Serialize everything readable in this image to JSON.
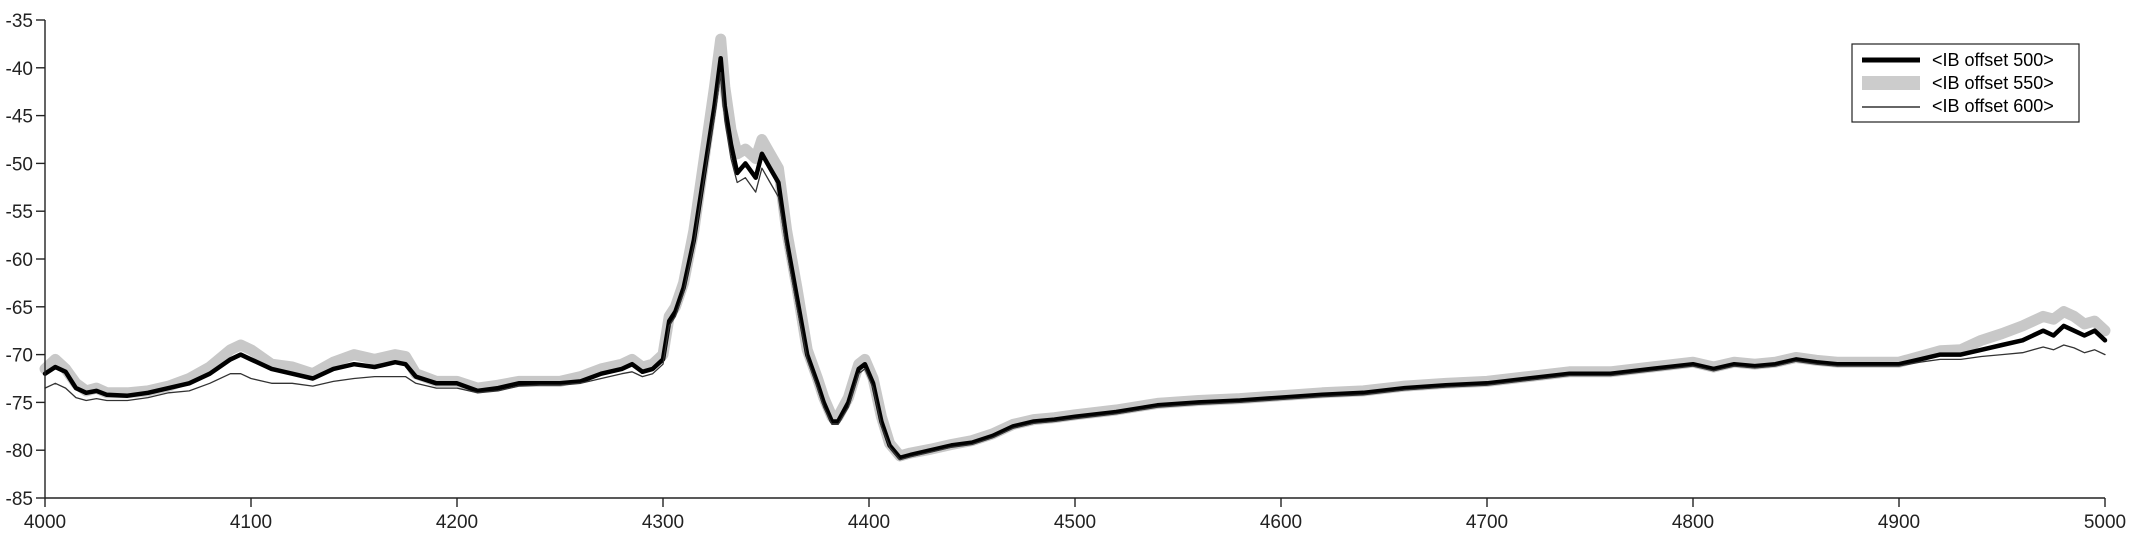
{
  "chart_data": {
    "type": "line",
    "title": "",
    "xlabel": "",
    "ylabel": "",
    "xlim": [
      4000,
      5000
    ],
    "ylim": [
      -85,
      -35
    ],
    "xticks": [
      4000,
      4100,
      4200,
      4300,
      4400,
      4500,
      4600,
      4700,
      4800,
      4900,
      5000
    ],
    "yticks": [
      -35,
      -40,
      -45,
      -50,
      -55,
      -60,
      -65,
      -70,
      -75,
      -80,
      -85
    ],
    "grid": false,
    "legend_position": "top-right",
    "legend": [
      {
        "label": "<IB offset 500>",
        "style": "thick-black-line",
        "color": "#000000"
      },
      {
        "label": "<IB offset 550>",
        "style": "gray-band",
        "color": "#cccccc"
      },
      {
        "label": "<IB offset 600>",
        "style": "thin-black-line",
        "color": "#333333"
      }
    ],
    "series": [
      {
        "name": "<IB offset 500>",
        "x": [
          4000,
          4005,
          4010,
          4015,
          4020,
          4025,
          4030,
          4040,
          4050,
          4060,
          4070,
          4080,
          4090,
          4095,
          4100,
          4110,
          4120,
          4130,
          4140,
          4150,
          4160,
          4170,
          4175,
          4180,
          4190,
          4200,
          4210,
          4220,
          4230,
          4240,
          4250,
          4260,
          4270,
          4280,
          4285,
          4290,
          4295,
          4300,
          4303,
          4306,
          4310,
          4315,
          4320,
          4325,
          4328,
          4330,
          4333,
          4336,
          4340,
          4345,
          4348,
          4352,
          4356,
          4360,
          4365,
          4370,
          4375,
          4378,
          4382,
          4385,
          4390,
          4395,
          4398,
          4402,
          4406,
          4410,
          4415,
          4420,
          4430,
          4440,
          4450,
          4460,
          4470,
          4480,
          4490,
          4500,
          4520,
          4540,
          4560,
          4580,
          4600,
          4620,
          4640,
          4660,
          4680,
          4700,
          4720,
          4740,
          4760,
          4780,
          4800,
          4810,
          4820,
          4830,
          4840,
          4850,
          4860,
          4870,
          4880,
          4890,
          4900,
          4910,
          4920,
          4930,
          4940,
          4950,
          4960,
          4970,
          4975,
          4980,
          4985,
          4990,
          4995,
          5000
        ],
        "y": [
          -72.0,
          -71.3,
          -71.8,
          -73.5,
          -74.0,
          -73.8,
          -74.2,
          -74.3,
          -74.0,
          -73.5,
          -73.0,
          -72.0,
          -70.5,
          -70.0,
          -70.5,
          -71.5,
          -72.0,
          -72.5,
          -71.5,
          -71.0,
          -71.3,
          -70.8,
          -71.0,
          -72.3,
          -73.0,
          -73.0,
          -73.8,
          -73.5,
          -73.0,
          -73.0,
          -73.0,
          -72.8,
          -72.0,
          -71.5,
          -71.0,
          -71.8,
          -71.5,
          -70.5,
          -66.5,
          -65.5,
          -63.0,
          -58.0,
          -51.0,
          -44.0,
          -39.0,
          -44.0,
          -48.0,
          -51.0,
          -50.0,
          -51.5,
          -49.0,
          -50.5,
          -52.0,
          -58.0,
          -64.0,
          -70.0,
          -73.0,
          -75.0,
          -77.0,
          -77.0,
          -75.0,
          -71.5,
          -71.0,
          -73.0,
          -77.0,
          -79.5,
          -80.8,
          -80.5,
          -80.0,
          -79.5,
          -79.2,
          -78.5,
          -77.5,
          -77.0,
          -76.8,
          -76.5,
          -76.0,
          -75.3,
          -75.0,
          -74.8,
          -74.5,
          -74.2,
          -74.0,
          -73.5,
          -73.2,
          -73.0,
          -72.5,
          -72.0,
          -72.0,
          -71.5,
          -71.0,
          -71.5,
          -71.0,
          -71.2,
          -71.0,
          -70.5,
          -70.8,
          -71.0,
          -71.0,
          -71.0,
          -71.0,
          -70.5,
          -70.0,
          -70.0,
          -69.5,
          -69.0,
          -68.5,
          -67.5,
          -68.0,
          -67.0,
          -67.5,
          -68.0,
          -67.5,
          -68.5
        ]
      },
      {
        "name": "<IB offset 550>",
        "x": [
          4000,
          4005,
          4010,
          4015,
          4020,
          4025,
          4030,
          4040,
          4050,
          4060,
          4070,
          4080,
          4090,
          4095,
          4100,
          4110,
          4120,
          4130,
          4140,
          4150,
          4160,
          4170,
          4175,
          4180,
          4190,
          4200,
          4210,
          4220,
          4230,
          4240,
          4250,
          4260,
          4270,
          4280,
          4285,
          4290,
          4295,
          4300,
          4303,
          4306,
          4310,
          4315,
          4320,
          4325,
          4328,
          4330,
          4333,
          4336,
          4340,
          4345,
          4348,
          4352,
          4356,
          4360,
          4365,
          4370,
          4375,
          4378,
          4382,
          4385,
          4390,
          4395,
          4398,
          4402,
          4406,
          4410,
          4415,
          4420,
          4430,
          4440,
          4450,
          4460,
          4470,
          4480,
          4490,
          4500,
          4520,
          4540,
          4560,
          4580,
          4600,
          4620,
          4640,
          4660,
          4680,
          4700,
          4720,
          4740,
          4760,
          4780,
          4800,
          4810,
          4820,
          4830,
          4840,
          4850,
          4860,
          4870,
          4880,
          4890,
          4900,
          4910,
          4920,
          4930,
          4940,
          4950,
          4960,
          4970,
          4975,
          4980,
          4985,
          4990,
          4995,
          5000
        ],
        "y": [
          -71.5,
          -70.5,
          -71.5,
          -73.0,
          -73.8,
          -73.5,
          -74.0,
          -74.0,
          -73.8,
          -73.3,
          -72.5,
          -71.3,
          -69.5,
          -69.0,
          -69.5,
          -71.0,
          -71.3,
          -72.0,
          -70.8,
          -70.0,
          -70.5,
          -70.0,
          -70.2,
          -72.0,
          -72.8,
          -72.8,
          -73.5,
          -73.2,
          -72.8,
          -72.8,
          -72.8,
          -72.3,
          -71.5,
          -71.0,
          -70.5,
          -71.3,
          -71.0,
          -70.0,
          -66.0,
          -65.0,
          -62.5,
          -57.0,
          -49.5,
          -42.0,
          -37.0,
          -42.0,
          -46.5,
          -49.0,
          -48.5,
          -49.5,
          -47.5,
          -49.0,
          -50.5,
          -57.0,
          -63.0,
          -69.5,
          -72.5,
          -74.5,
          -76.5,
          -76.5,
          -74.5,
          -71.0,
          -70.5,
          -72.5,
          -76.5,
          -79.3,
          -80.6,
          -80.3,
          -79.9,
          -79.4,
          -79.0,
          -78.3,
          -77.3,
          -76.8,
          -76.6,
          -76.3,
          -75.8,
          -75.1,
          -74.8,
          -74.6,
          -74.3,
          -74.0,
          -73.8,
          -73.3,
          -73.0,
          -72.8,
          -72.3,
          -71.8,
          -71.8,
          -71.3,
          -70.8,
          -71.3,
          -70.8,
          -71.0,
          -70.8,
          -70.3,
          -70.6,
          -70.8,
          -70.8,
          -70.8,
          -70.8,
          -70.2,
          -69.6,
          -69.5,
          -68.5,
          -67.8,
          -67.0,
          -66.0,
          -66.3,
          -65.5,
          -66.0,
          -66.8,
          -66.5,
          -67.5
        ]
      },
      {
        "name": "<IB offset 600>",
        "x": [
          4000,
          4005,
          4010,
          4015,
          4020,
          4025,
          4030,
          4040,
          4050,
          4060,
          4070,
          4080,
          4090,
          4095,
          4100,
          4110,
          4120,
          4130,
          4140,
          4150,
          4160,
          4170,
          4175,
          4180,
          4190,
          4200,
          4210,
          4220,
          4230,
          4240,
          4250,
          4260,
          4270,
          4280,
          4285,
          4290,
          4295,
          4300,
          4303,
          4306,
          4310,
          4315,
          4320,
          4325,
          4328,
          4330,
          4333,
          4336,
          4340,
          4345,
          4348,
          4352,
          4356,
          4360,
          4365,
          4370,
          4375,
          4378,
          4382,
          4385,
          4390,
          4395,
          4398,
          4402,
          4406,
          4410,
          4415,
          4420,
          4430,
          4440,
          4450,
          4460,
          4470,
          4480,
          4490,
          4500,
          4520,
          4540,
          4560,
          4580,
          4600,
          4620,
          4640,
          4660,
          4680,
          4700,
          4720,
          4740,
          4760,
          4780,
          4800,
          4810,
          4820,
          4830,
          4840,
          4850,
          4860,
          4870,
          4880,
          4890,
          4900,
          4910,
          4920,
          4930,
          4940,
          4950,
          4960,
          4970,
          4975,
          4980,
          4985,
          4990,
          4995,
          5000
        ],
        "y": [
          -73.5,
          -73.0,
          -73.5,
          -74.5,
          -74.8,
          -74.6,
          -74.8,
          -74.8,
          -74.5,
          -74.0,
          -73.8,
          -73.0,
          -72.0,
          -72.0,
          -72.5,
          -73.0,
          -73.0,
          -73.3,
          -72.8,
          -72.5,
          -72.3,
          -72.3,
          -72.3,
          -73.0,
          -73.5,
          -73.5,
          -74.0,
          -73.8,
          -73.3,
          -73.2,
          -73.2,
          -73.0,
          -72.5,
          -72.0,
          -71.8,
          -72.3,
          -72.0,
          -71.0,
          -67.0,
          -66.0,
          -63.5,
          -58.5,
          -51.5,
          -45.0,
          -40.5,
          -45.5,
          -49.5,
          -52.0,
          -51.5,
          -53.0,
          -50.5,
          -52.0,
          -53.5,
          -59.0,
          -65.0,
          -70.5,
          -73.5,
          -75.5,
          -77.3,
          -77.3,
          -75.5,
          -72.0,
          -71.5,
          -73.5,
          -77.5,
          -79.7,
          -81.0,
          -80.7,
          -80.2,
          -79.7,
          -79.4,
          -78.7,
          -77.7,
          -77.2,
          -77.0,
          -76.7,
          -76.2,
          -75.5,
          -75.2,
          -75.0,
          -74.7,
          -74.4,
          -74.2,
          -73.7,
          -73.4,
          -73.2,
          -72.7,
          -72.2,
          -72.2,
          -71.7,
          -71.2,
          -71.7,
          -71.2,
          -71.4,
          -71.2,
          -70.7,
          -71.0,
          -71.2,
          -71.2,
          -71.2,
          -71.2,
          -70.8,
          -70.5,
          -70.5,
          -70.2,
          -70.0,
          -69.8,
          -69.2,
          -69.5,
          -69.0,
          -69.3,
          -69.8,
          -69.5,
          -70.0
        ]
      }
    ]
  }
}
